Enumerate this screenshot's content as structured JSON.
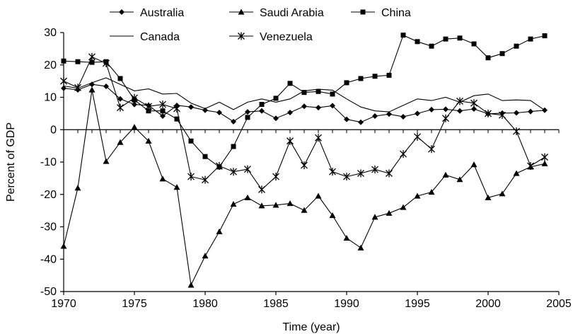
{
  "chart_data": {
    "type": "line",
    "xlabel": "Time (year)",
    "ylabel": "Percent of GDP",
    "xlim": [
      1970,
      2005
    ],
    "ylim": [
      -50,
      30
    ],
    "xticks": [
      1970,
      1975,
      1980,
      1985,
      1990,
      1995,
      2000,
      2005
    ],
    "yticks": [
      -50,
      -40,
      -30,
      -20,
      -10,
      0,
      10,
      20,
      30
    ],
    "grid": false,
    "legend_position": "top",
    "x": [
      1970,
      1971,
      1972,
      1973,
      1974,
      1975,
      1976,
      1977,
      1978,
      1979,
      1980,
      1981,
      1982,
      1983,
      1984,
      1985,
      1986,
      1987,
      1988,
      1989,
      1990,
      1991,
      1992,
      1993,
      1994,
      1995,
      1996,
      1997,
      1998,
      1999,
      2000,
      2001,
      2002,
      2003,
      2004
    ],
    "series": [
      {
        "name": "Australia",
        "marker": "diamond",
        "values": [
          12.8,
          12.3,
          14.0,
          13.4,
          9.5,
          7.8,
          7.5,
          4.2,
          7.5,
          7.0,
          6.0,
          5.3,
          2.5,
          5.5,
          5.8,
          3.5,
          5.3,
          7.2,
          6.8,
          7.4,
          3.2,
          2.3,
          4.2,
          4.8,
          4.0,
          5.0,
          6.2,
          6.3,
          5.8,
          6.4,
          4.9,
          5.1,
          5.2,
          5.6,
          6.0
        ]
      },
      {
        "name": "Saudi Arabia",
        "marker": "triangle",
        "values": [
          -36,
          -18,
          12.3,
          -9.8,
          -3.9,
          0.8,
          -3.5,
          -15.2,
          -17.8,
          -48,
          -39,
          -31.5,
          -23,
          -21,
          -23.5,
          -23.3,
          -22.8,
          -24.9,
          -20.5,
          -26.5,
          -33.5,
          -36.5,
          -27,
          -25.8,
          -24,
          -20.5,
          -19.3,
          -14,
          -15.4,
          -10.8,
          -21,
          -19.8,
          -13.5,
          -11.5,
          -10.5
        ]
      },
      {
        "name": "China",
        "marker": "square",
        "values": [
          21.2,
          21.0,
          20.8,
          21.0,
          15.8,
          9.2,
          5.8,
          5.8,
          3.3,
          -3.5,
          -8.3,
          -11.5,
          -5.2,
          3.8,
          7.8,
          9.7,
          14.3,
          11.5,
          11.8,
          11.0,
          14.5,
          15.8,
          16.5,
          16.8,
          29.2,
          27.2,
          25.8,
          28.0,
          28.3,
          26.5,
          22.2,
          23.5,
          25.8,
          28.0,
          29.0
        ]
      },
      {
        "name": "Canada",
        "marker": "none",
        "values": [
          13.5,
          12.8,
          14.5,
          16.0,
          14.0,
          12.0,
          12.6,
          11.0,
          11.2,
          8.2,
          6.5,
          8.5,
          6.2,
          8.5,
          9.5,
          8.5,
          9.5,
          12.0,
          12.5,
          12.2,
          9.5,
          7.0,
          5.8,
          5.5,
          7.5,
          9.5,
          9.0,
          10.0,
          8.5,
          10.5,
          11.0,
          9.0,
          9.2,
          9.0,
          6.0
        ]
      },
      {
        "name": "Venezuela",
        "marker": "star",
        "values": [
          15.0,
          13.0,
          22.5,
          20.5,
          6.8,
          9.8,
          7.2,
          7.8,
          6.5,
          -14.5,
          -15.5,
          -11.2,
          -13.0,
          -12.2,
          -18.5,
          -14.5,
          -3.5,
          -11.0,
          -2.5,
          -13.0,
          -14.5,
          -13.5,
          -12.3,
          -13.5,
          -7.5,
          -2.2,
          -6.0,
          3.5,
          8.8,
          8.2,
          5.0,
          4.5,
          -0.5,
          -11.2,
          -8.5
        ]
      }
    ]
  }
}
